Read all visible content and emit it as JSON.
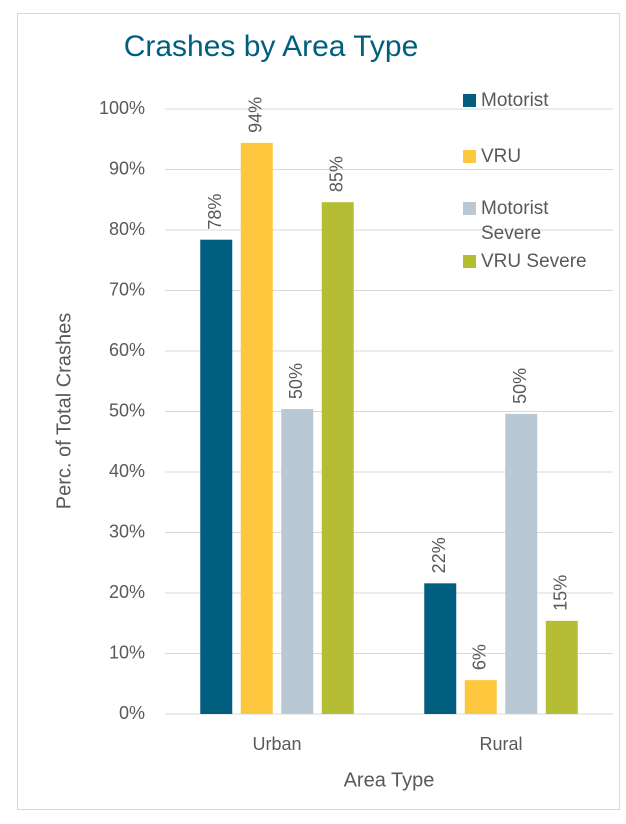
{
  "chart_data": {
    "type": "bar",
    "title": "Crashes by Area Type",
    "x_label": "Area Type",
    "y_label": "Perc. of Total Crashes",
    "categories": [
      "Urban",
      "Rural"
    ],
    "series": [
      {
        "name": "Motorist",
        "color": "#005f7f",
        "values": [
          78.4,
          21.6
        ],
        "value_labels": [
          "78%",
          "22%"
        ]
      },
      {
        "name": "VRU",
        "color": "#fdc73e",
        "values": [
          94.4,
          5.6
        ],
        "value_labels": [
          "94%",
          "6%"
        ]
      },
      {
        "name": "Motorist Severe",
        "color": "#bac8d3",
        "values": [
          50.4,
          49.6
        ],
        "value_labels": [
          "50%",
          "50%"
        ]
      },
      {
        "name": "VRU Severe",
        "color": "#b5bd35",
        "values": [
          84.6,
          15.4
        ],
        "value_labels": [
          "85%",
          "15%"
        ]
      }
    ],
    "ylim": [
      0,
      100
    ],
    "yticks": [
      {
        "value": 0,
        "label": "0%"
      },
      {
        "value": 10,
        "label": "10%"
      },
      {
        "value": 20,
        "label": "20%"
      },
      {
        "value": 30,
        "label": "30%"
      },
      {
        "value": 40,
        "label": "40%"
      },
      {
        "value": 50,
        "label": "50%"
      },
      {
        "value": 60,
        "label": "60%"
      },
      {
        "value": 70,
        "label": "70%"
      },
      {
        "value": 80,
        "label": "80%"
      },
      {
        "value": 90,
        "label": "90%"
      },
      {
        "value": 100,
        "label": "100%"
      }
    ],
    "grid": true,
    "legend": "top-right"
  }
}
